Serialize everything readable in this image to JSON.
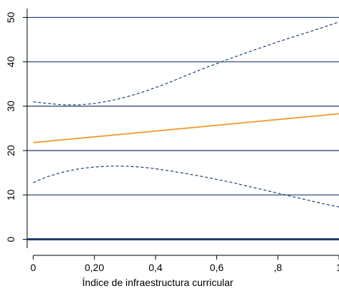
{
  "chart_data": {
    "type": "line",
    "xlabel": "Índice de infraestructura curricular",
    "ylabel": "",
    "xlim": [
      -0.02,
      1.0
    ],
    "ylim": [
      -2,
      52
    ],
    "x_ticks": [
      {
        "value": 0,
        "label": "0"
      },
      {
        "value": 0.2,
        "label": "0,20"
      },
      {
        "value": 0.4,
        "label": "0,4"
      },
      {
        "value": 0.6,
        "label": "0,6"
      },
      {
        "value": 0.8,
        "label": ",8"
      },
      {
        "value": 1.0,
        "label": "1"
      }
    ],
    "y_ticks": [
      {
        "value": 0,
        "label": "0"
      },
      {
        "value": 10,
        "label": "10"
      },
      {
        "value": 20,
        "label": "20"
      },
      {
        "value": 30,
        "label": "30"
      },
      {
        "value": 40,
        "label": "40"
      },
      {
        "value": 50,
        "label": "50"
      }
    ],
    "grid": true,
    "colors": {
      "grid": "#1f3d6e",
      "zero_line": "#1f3d6e",
      "estimate": "#f0a040",
      "bounds": "#1f3d6e"
    },
    "series": [
      {
        "style": "solid",
        "x": [
          0,
          1.0
        ],
        "y": [
          21.8,
          28.3
        ]
      },
      {
        "style": "dashed",
        "x": [
          0,
          0.05,
          0.1,
          0.15,
          0.2,
          0.25,
          0.3,
          0.35,
          0.4,
          0.45,
          0.5,
          0.55,
          0.6,
          0.65,
          0.7,
          0.75,
          0.8,
          0.85,
          0.9,
          0.95,
          1.0
        ],
        "y": [
          31.0,
          30.6,
          30.3,
          30.3,
          30.6,
          31.2,
          32.0,
          33.0,
          34.2,
          35.5,
          36.9,
          38.3,
          39.6,
          40.9,
          42.1,
          43.3,
          44.5,
          45.6,
          46.7,
          47.8,
          49.0
        ]
      },
      {
        "style": "dashed",
        "x": [
          0,
          0.05,
          0.1,
          0.15,
          0.2,
          0.25,
          0.3,
          0.35,
          0.4,
          0.45,
          0.5,
          0.55,
          0.6,
          0.65,
          0.7,
          0.75,
          0.8,
          0.85,
          0.9,
          0.95,
          1.0
        ],
        "y": [
          12.8,
          14.2,
          15.2,
          15.9,
          16.3,
          16.5,
          16.5,
          16.3,
          15.9,
          15.4,
          14.8,
          14.2,
          13.5,
          12.8,
          12.0,
          11.2,
          10.4,
          9.6,
          8.8,
          8.0,
          7.3
        ]
      }
    ]
  }
}
